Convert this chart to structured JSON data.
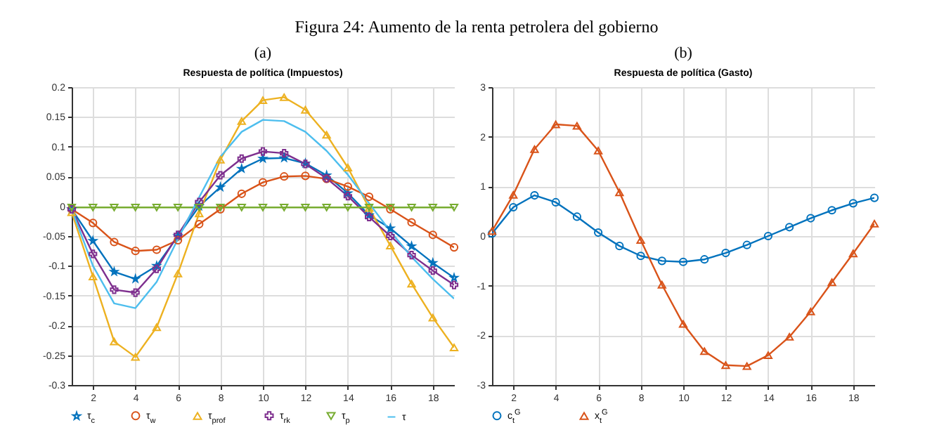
{
  "chart_data": [
    {
      "type": "line",
      "subtitle": "(a)",
      "title": "Respuesta de política (Impuestos)",
      "annotations": [
        "Figura 24: Aumento de la renta petrolera del gobierno"
      ],
      "x": [
        1,
        2,
        3,
        4,
        5,
        6,
        7,
        8,
        9,
        10,
        11,
        12,
        13,
        14,
        15,
        16,
        17,
        18,
        19
      ],
      "xlim": [
        1,
        19
      ],
      "xticks": [
        2,
        4,
        6,
        8,
        10,
        12,
        14,
        16,
        18
      ],
      "ylim": [
        -0.3,
        0.2
      ],
      "yticks": [
        -0.3,
        -0.25,
        -0.2,
        -0.15,
        -0.1,
        -0.05,
        0,
        0.05,
        0.1,
        0.15,
        0.2
      ],
      "grid": true,
      "legend": "bottom",
      "series": [
        {
          "name": "τ$_{c}$",
          "color": "#0072bd",
          "marker": "star",
          "values": [
            -0.005,
            -0.058,
            -0.11,
            -0.122,
            -0.1,
            -0.05,
            0,
            0.032,
            0.063,
            0.08,
            0.081,
            0.072,
            0.052,
            0.022,
            -0.015,
            -0.037,
            -0.067,
            -0.095,
            -0.12
          ]
        },
        {
          "name": "τ$_{w}$",
          "color": "#d95319",
          "marker": "circle",
          "values": [
            -0.005,
            -0.028,
            -0.06,
            -0.075,
            -0.073,
            -0.057,
            -0.03,
            -0.005,
            0.021,
            0.04,
            0.05,
            0.051,
            0.046,
            0.033,
            0.016,
            -0.005,
            -0.027,
            -0.048,
            -0.069
          ]
        },
        {
          "name": "τ$_{prof}$",
          "color": "#edb120",
          "marker": "triangle",
          "values": [
            -0.01,
            -0.118,
            -0.227,
            -0.253,
            -0.203,
            -0.113,
            -0.012,
            0.078,
            0.143,
            0.178,
            0.183,
            0.162,
            0.12,
            0.065,
            -0.003,
            -0.066,
            -0.13,
            -0.187,
            -0.237
          ]
        },
        {
          "name": "τ$_{rk}$",
          "color": "#7e2f8e",
          "marker": "cross",
          "values": [
            -0.005,
            -0.08,
            -0.14,
            -0.145,
            -0.105,
            -0.048,
            0.007,
            0.052,
            0.08,
            0.092,
            0.089,
            0.071,
            0.047,
            0.017,
            -0.018,
            -0.05,
            -0.082,
            -0.108,
            -0.132
          ]
        },
        {
          "name": "τ$_{p}$",
          "color": "#77ac30",
          "marker": "triangle-down",
          "values": [
            -0.002,
            -0.002,
            -0.002,
            -0.002,
            -0.002,
            -0.002,
            -0.002,
            -0.002,
            -0.002,
            -0.002,
            -0.002,
            -0.002,
            -0.002,
            -0.002,
            -0.002,
            -0.002,
            -0.002,
            -0.002,
            -0.002
          ]
        },
        {
          "name": "τ",
          "color": "#4dbeee",
          "marker": "none",
          "values": [
            -0.005,
            -0.1,
            -0.163,
            -0.171,
            -0.127,
            -0.055,
            0.015,
            0.083,
            0.125,
            0.145,
            0.143,
            0.125,
            0.093,
            0.053,
            0.005,
            -0.042,
            -0.085,
            -0.122,
            -0.155
          ]
        }
      ]
    },
    {
      "type": "line",
      "subtitle": "(b)",
      "title": "Respuesta de política (Gasto)",
      "x": [
        1,
        2,
        3,
        4,
        5,
        6,
        7,
        8,
        9,
        10,
        11,
        12,
        13,
        14,
        15,
        16,
        17,
        18,
        19
      ],
      "xlim": [
        1,
        19
      ],
      "xticks": [
        2,
        4,
        6,
        8,
        10,
        12,
        14,
        16,
        18
      ],
      "ylim": [
        -3,
        3
      ],
      "yticks": [
        -3,
        -2,
        -1,
        0,
        1,
        2,
        3
      ],
      "grid": true,
      "legend": "bottom",
      "series": [
        {
          "name": "c$_{t}$$^{G}$",
          "color": "#0072bd",
          "marker": "circle",
          "values": [
            0.05,
            0.58,
            0.82,
            0.68,
            0.39,
            0.07,
            -0.2,
            -0.4,
            -0.5,
            -0.52,
            -0.47,
            -0.34,
            -0.18,
            0,
            0.18,
            0.36,
            0.52,
            0.66,
            0.77
          ]
        },
        {
          "name": "x$_{t}$$^{G}$",
          "color": "#d95319",
          "marker": "triangle",
          "values": [
            0.1,
            0.83,
            1.75,
            2.25,
            2.22,
            1.72,
            0.88,
            -0.08,
            -0.98,
            -1.77,
            -2.32,
            -2.6,
            -2.62,
            -2.4,
            -2.03,
            -1.52,
            -0.93,
            -0.35,
            0.25
          ]
        }
      ]
    }
  ]
}
